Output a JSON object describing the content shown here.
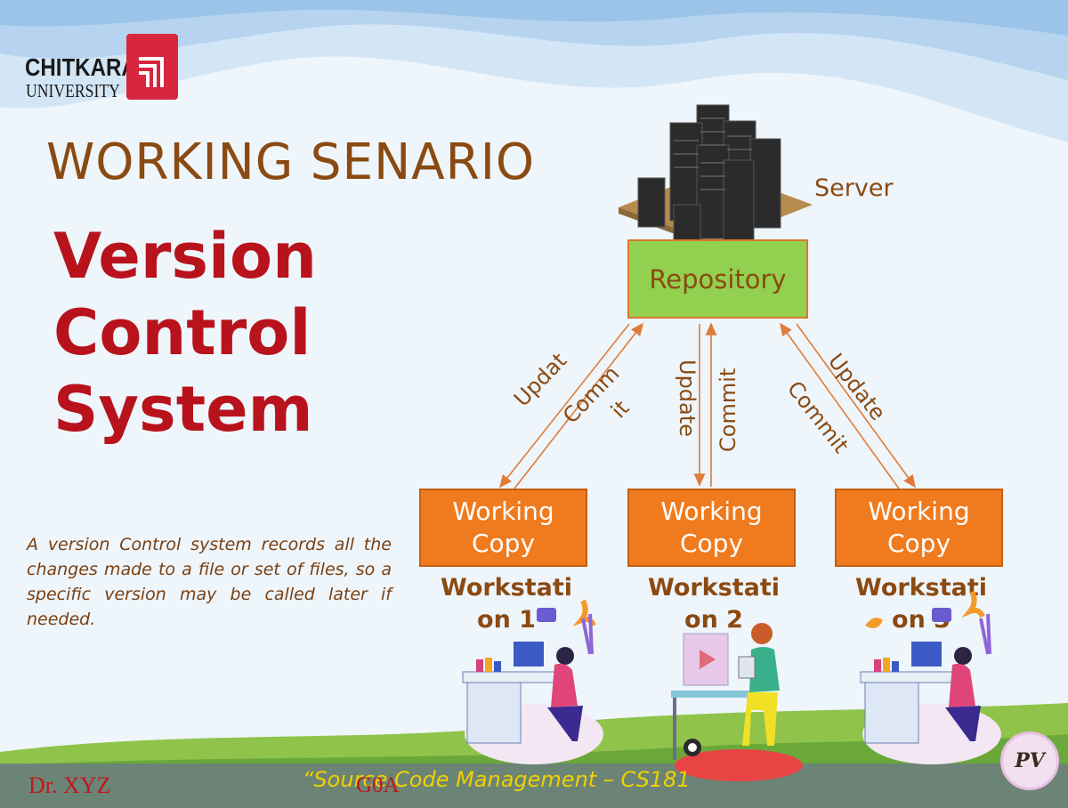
{
  "logo": {
    "brand": "CHITKARA",
    "sub": "UNIVERSITY"
  },
  "heading": "WORKING SENARIO",
  "title_lines": [
    "Version",
    "Control",
    "System"
  ],
  "description": "A version Control system records all the changes made to a file or set of files, so a specific version may be called later if needed.",
  "server": {
    "label": "Server"
  },
  "repository": {
    "label": "Repository"
  },
  "working_copies": [
    {
      "label_lines": [
        "Working",
        "Copy"
      ],
      "workstation": "Workstation 1"
    },
    {
      "label_lines": [
        "Working",
        "Copy"
      ],
      "workstation": "Workstation 2"
    },
    {
      "label_lines": [
        "Working",
        "Copy"
      ],
      "workstation": "Workstation 3"
    }
  ],
  "arrow_labels": {
    "left_update": "Updat",
    "left_commit_1": "Comm",
    "left_commit_2": "it",
    "mid_update": "Update",
    "mid_commit": "Commit",
    "right_update": "Update",
    "right_commit": "Commit"
  },
  "footer": {
    "author": "Dr. XYZ",
    "course": "“Source Code Management – CS181",
    "code": "G0A"
  },
  "badge": "PV",
  "colors": {
    "heading": "#8a4a12",
    "title": "#b8131c",
    "repository": "#92d050",
    "working_copy": "#f07b1e",
    "arrows": "#e07b39"
  }
}
